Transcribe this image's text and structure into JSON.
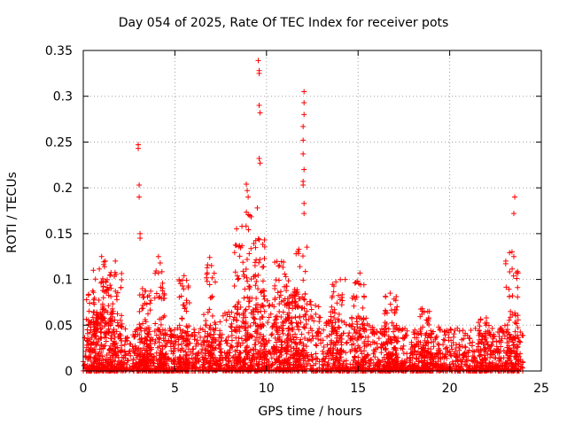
{
  "chart_data": {
    "type": "scatter",
    "title": "Day 054 of 2025, Rate Of TEC Index for receiver pots",
    "xlabel": "GPS time / hours",
    "ylabel": "ROTI / TECUs",
    "xlim": [
      0,
      25
    ],
    "ylim": [
      0,
      0.35
    ],
    "xticks": [
      0,
      5,
      10,
      15,
      20,
      25
    ],
    "xtick_labels": [
      "0",
      "5",
      "10",
      "15",
      "20",
      "25"
    ],
    "yticks": [
      0,
      0.05,
      0.1,
      0.15,
      0.2,
      0.25,
      0.3,
      0.35
    ],
    "ytick_labels": [
      "0",
      "0.05",
      "0.1",
      "0.15",
      "0.2",
      "0.25",
      "0.3",
      "0.35"
    ],
    "grid": true,
    "marker": "+",
    "color": "#ff0000",
    "series": [
      {
        "name": "ROTI",
        "points": [
          [
            3.0,
            0.247
          ],
          [
            3.0,
            0.243
          ],
          [
            3.05,
            0.203
          ],
          [
            3.05,
            0.19
          ],
          [
            3.1,
            0.15
          ],
          [
            3.1,
            0.145
          ],
          [
            9.55,
            0.339
          ],
          [
            9.6,
            0.328
          ],
          [
            9.6,
            0.325
          ],
          [
            9.6,
            0.29
          ],
          [
            9.65,
            0.282
          ],
          [
            9.6,
            0.232
          ],
          [
            9.65,
            0.227
          ],
          [
            12.05,
            0.305
          ],
          [
            12.05,
            0.293
          ],
          [
            12.05,
            0.28
          ],
          [
            12.0,
            0.267
          ],
          [
            12.0,
            0.252
          ],
          [
            12.0,
            0.237
          ],
          [
            12.05,
            0.22
          ],
          [
            12.0,
            0.207
          ],
          [
            12.0,
            0.203
          ],
          [
            12.05,
            0.183
          ],
          [
            12.05,
            0.172
          ],
          [
            8.9,
            0.204
          ],
          [
            8.95,
            0.197
          ],
          [
            9.0,
            0.19
          ],
          [
            9.5,
            0.178
          ],
          [
            23.55,
            0.19
          ],
          [
            23.5,
            0.172
          ],
          [
            4.1,
            0.125
          ],
          [
            4.2,
            0.118
          ],
          [
            0.55,
            0.11
          ],
          [
            1.0,
            0.125
          ],
          [
            1.2,
            0.12
          ],
          [
            1.75,
            0.12
          ],
          [
            6.9,
            0.124
          ],
          [
            7.0,
            0.115
          ],
          [
            5.5,
            0.104
          ],
          [
            14.3,
            0.1
          ],
          [
            15.1,
            0.107
          ],
          [
            16.75,
            0.085
          ],
          [
            18.5,
            0.068
          ],
          [
            18.8,
            0.065
          ],
          [
            19.4,
            0.048
          ],
          [
            22.0,
            0.058
          ],
          [
            22.4,
            0.04
          ],
          [
            23.4,
            0.13
          ],
          [
            23.5,
            0.125
          ]
        ]
      }
    ]
  }
}
